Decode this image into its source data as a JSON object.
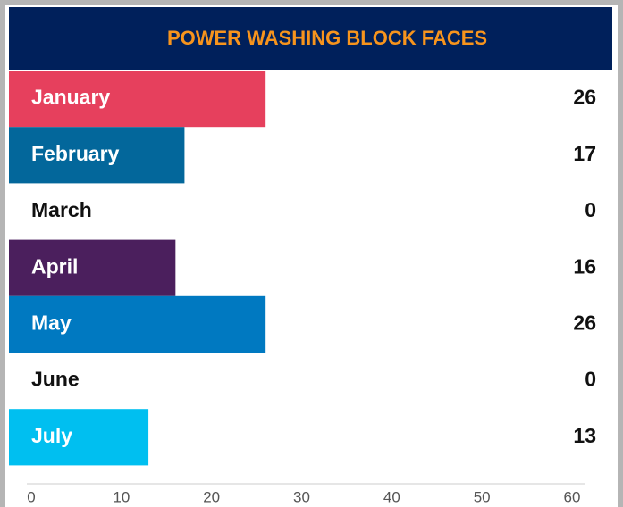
{
  "chart_data": {
    "type": "bar",
    "orientation": "horizontal",
    "title": "POWER WASHING BLOCK FACES",
    "categories": [
      "January",
      "February",
      "March",
      "April",
      "May",
      "June",
      "July"
    ],
    "values": [
      26,
      17,
      0,
      16,
      26,
      0,
      13
    ],
    "colors": [
      "#e6405d",
      "#03679b",
      null,
      "#4b1f5d",
      "#0079c1",
      null,
      "#00bff0"
    ],
    "xlim": [
      0,
      60
    ],
    "xticks": [
      0,
      10,
      20,
      30,
      40,
      50,
      60
    ]
  }
}
